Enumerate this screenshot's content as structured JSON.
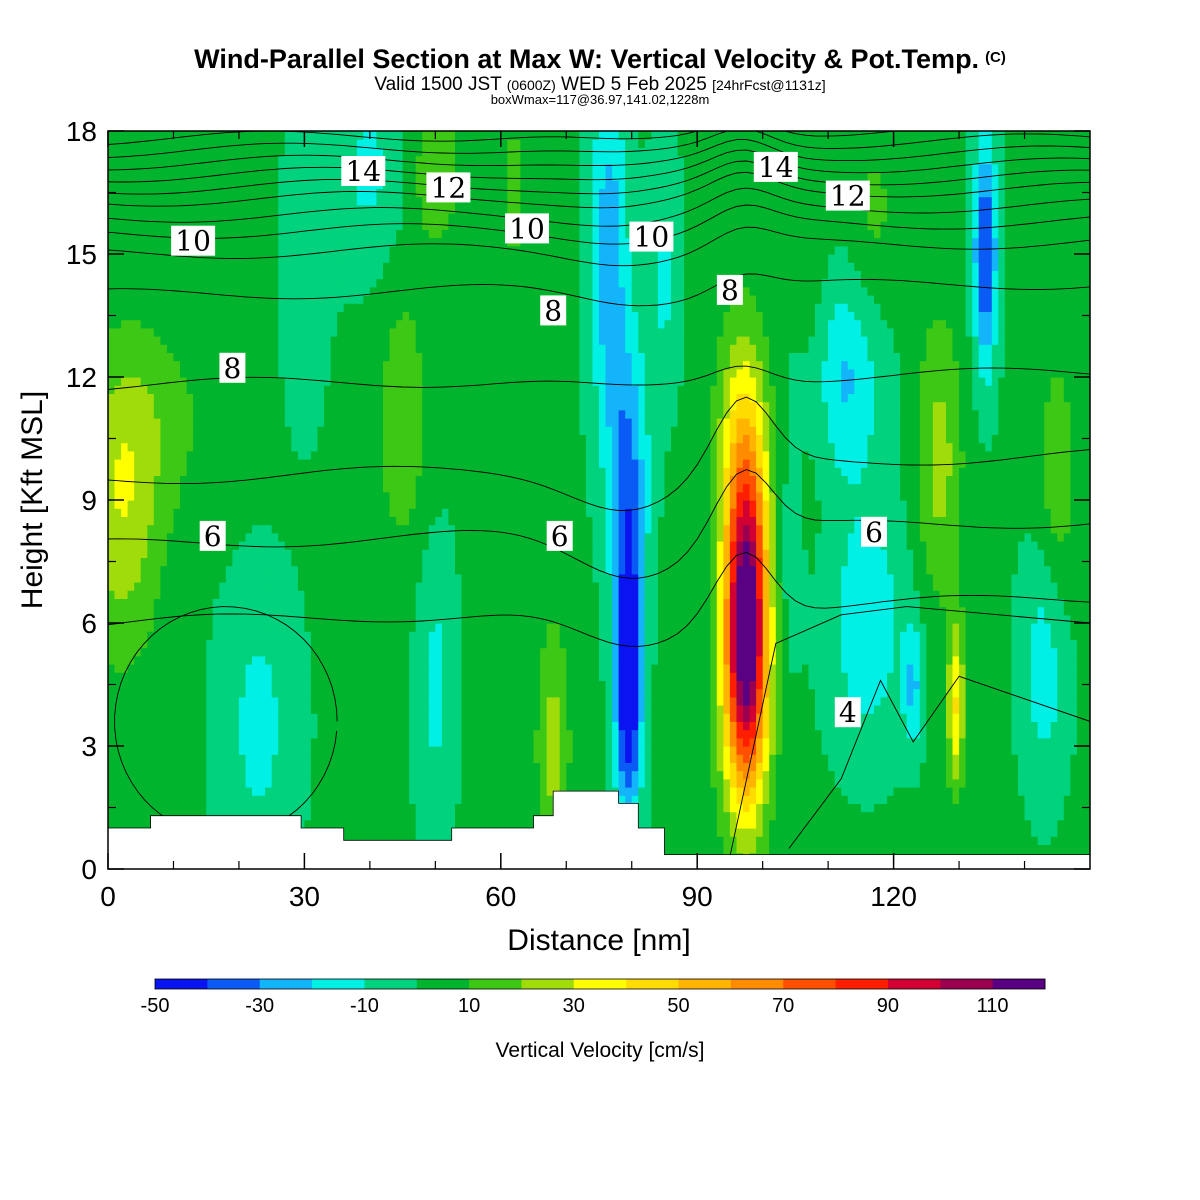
{
  "header": {
    "title": "Wind-Parallel Section at Max W: Vertical Velocity & Pot.Temp.",
    "title_mark": "(C)",
    "subtitle_part1": "Valid 1500 JST",
    "subtitle_part2": "(0600Z)",
    "subtitle_part3": "WED 5 Feb 2025",
    "subtitle_part4": "[24hrFcst@1131z]",
    "subtitle2": "boxWmax=117@36.97,141.02,1228m"
  },
  "chart_data": {
    "type": "heatmap",
    "xlabel": "Distance [nm]",
    "ylabel": "Height [Kft MSL]",
    "xlim": [
      0,
      150
    ],
    "ylim": [
      0,
      18
    ],
    "xticks": [
      0,
      30,
      60,
      90,
      120
    ],
    "yticks": [
      0,
      3,
      6,
      9,
      12,
      15,
      18
    ],
    "colorbar": {
      "label": "Vertical Velocity [cm/s]",
      "levels": [
        -50,
        -40,
        -30,
        -20,
        -10,
        0,
        10,
        20,
        30,
        40,
        50,
        60,
        70,
        80,
        90,
        100,
        110,
        120
      ],
      "tick_labels": [
        "-50",
        "-30",
        "-10",
        "10",
        "30",
        "50",
        "70",
        "90",
        "110"
      ],
      "colors": [
        "#0a14f0",
        "#0a5af5",
        "#14b4fa",
        "#00f0e6",
        "#00d27d",
        "#00b42d",
        "#3cc814",
        "#a0dc0a",
        "#ffff00",
        "#ffdc00",
        "#ffb400",
        "#ff8c00",
        "#ff5000",
        "#ff1e00",
        "#d20032",
        "#9b0050",
        "#5a0082"
      ]
    },
    "updraft_max_cm_s": 117,
    "theta_contour_labels": [
      {
        "text": "14",
        "x": 39,
        "y": 17.0
      },
      {
        "text": "12",
        "x": 52,
        "y": 16.6
      },
      {
        "text": "10",
        "x": 13,
        "y": 15.3
      },
      {
        "text": "10",
        "x": 64,
        "y": 15.6
      },
      {
        "text": "10",
        "x": 83,
        "y": 15.4
      },
      {
        "text": "14",
        "x": 102,
        "y": 17.1
      },
      {
        "text": "12",
        "x": 113,
        "y": 16.4
      },
      {
        "text": "8",
        "x": 19,
        "y": 12.2
      },
      {
        "text": "8",
        "x": 68,
        "y": 13.6
      },
      {
        "text": "8",
        "x": 95,
        "y": 14.1
      },
      {
        "text": "6",
        "x": 16,
        "y": 8.1
      },
      {
        "text": "6",
        "x": 69,
        "y": 8.1
      },
      {
        "text": "6",
        "x": 117,
        "y": 8.2
      },
      {
        "text": "4",
        "x": 113,
        "y": 3.8
      }
    ]
  }
}
